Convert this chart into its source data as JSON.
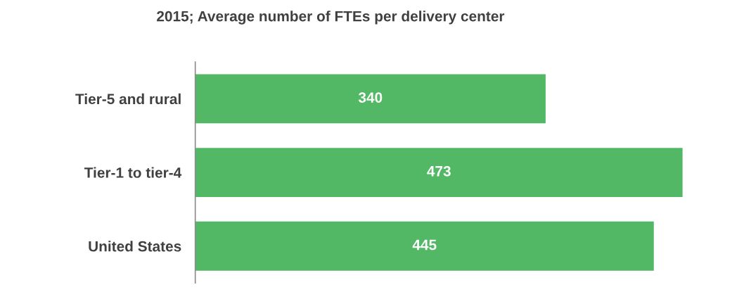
{
  "chart_data": {
    "type": "bar",
    "orientation": "horizontal",
    "title": "2015; Average number of FTEs per delivery center",
    "categories": [
      "Tier-5 and rural",
      "Tier-1 to tier-4",
      "United States"
    ],
    "values": [
      340,
      473,
      445
    ],
    "color": "#52b865",
    "data_labels": true,
    "grid": false
  }
}
